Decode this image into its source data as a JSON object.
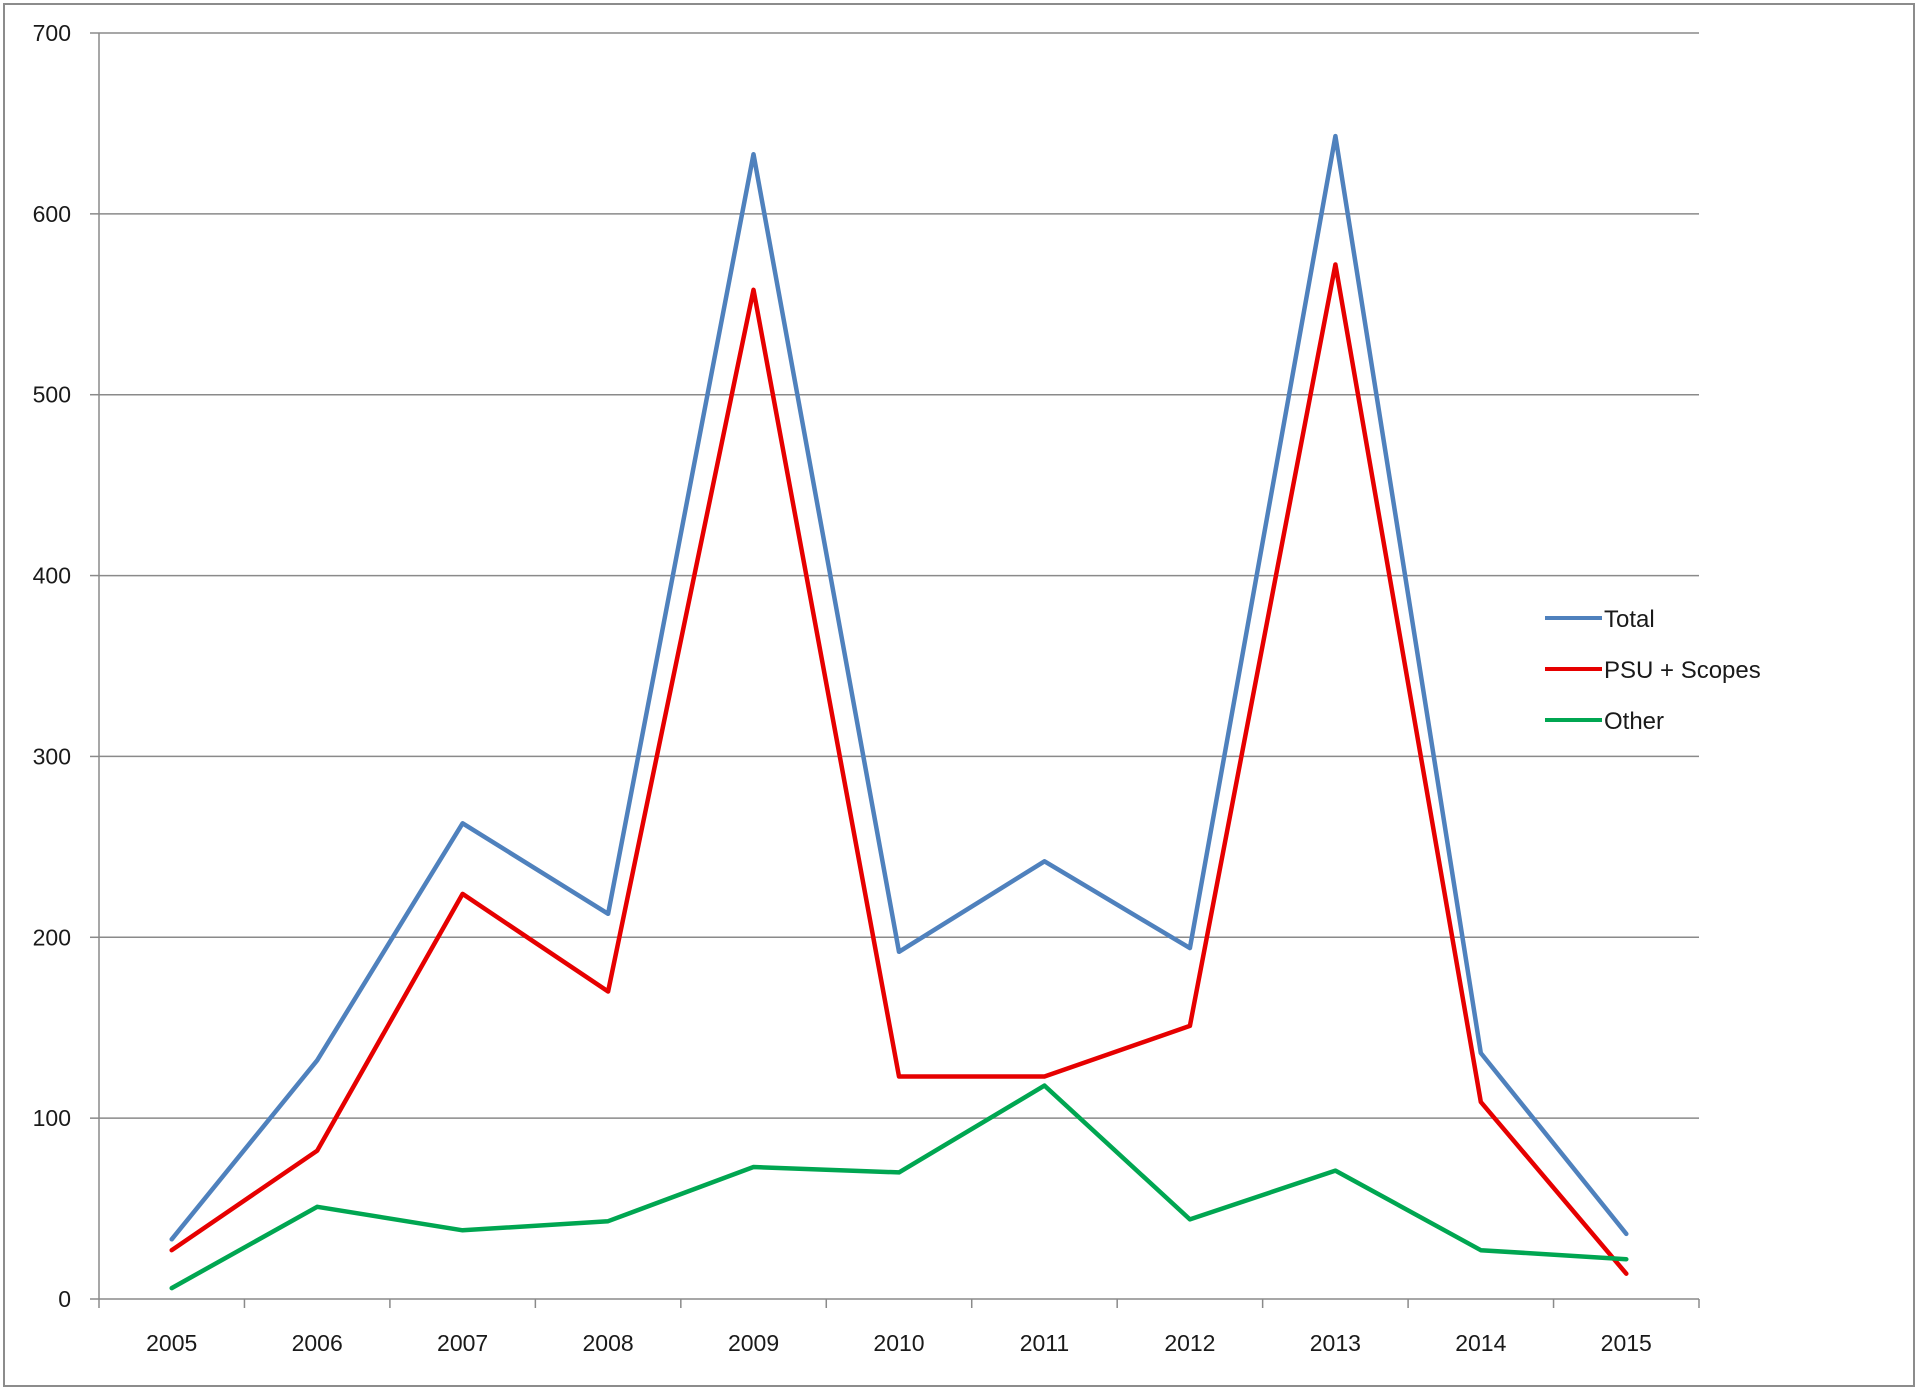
{
  "chart_data": {
    "type": "line",
    "title": "",
    "xlabel": "",
    "ylabel": "",
    "categories": [
      "2005",
      "2006",
      "2007",
      "2008",
      "2009",
      "2010",
      "2011",
      "2012",
      "2013",
      "2014",
      "2015"
    ],
    "series": [
      {
        "name": "Total",
        "color": "#4F81BD",
        "values": [
          33,
          132,
          263,
          213,
          633,
          192,
          242,
          194,
          643,
          136,
          36
        ]
      },
      {
        "name": "PSU + Scopes",
        "color": "#E60000",
        "values": [
          27,
          82,
          224,
          170,
          558,
          123,
          123,
          151,
          572,
          109,
          14
        ]
      },
      {
        "name": "Other",
        "color": "#00A651",
        "values": [
          6,
          51,
          38,
          43,
          73,
          70,
          118,
          44,
          71,
          27,
          22
        ]
      }
    ],
    "ylim": [
      0,
      700
    ],
    "yticks": [
      0,
      100,
      200,
      300,
      400,
      500,
      600,
      700
    ],
    "grid": true,
    "legend_position": "right"
  }
}
